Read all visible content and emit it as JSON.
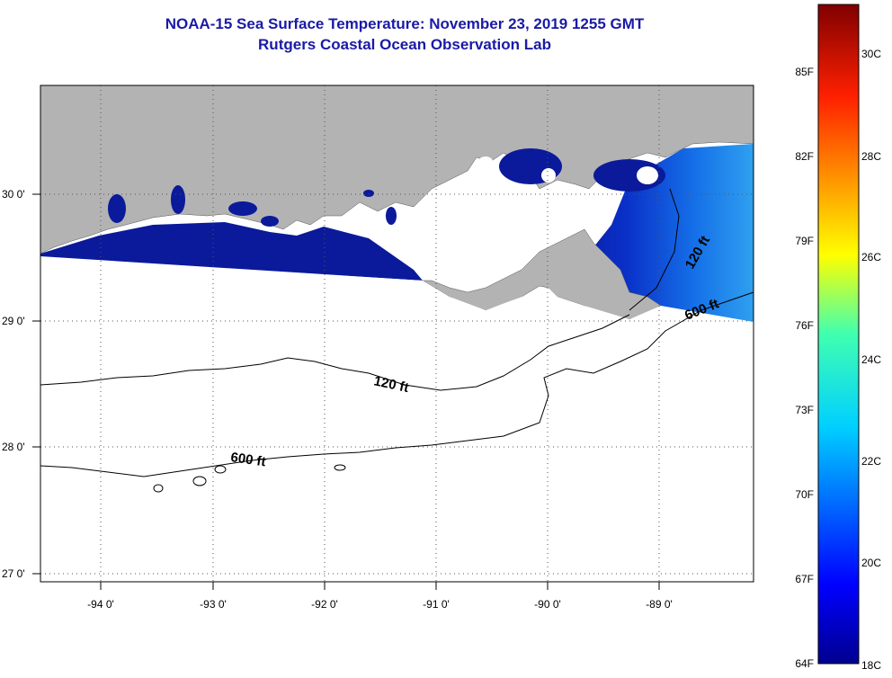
{
  "header": {
    "title": "NOAA-15 Sea Surface Temperature:  November 23, 2019 1255 GMT",
    "subtitle": "Rutgers Coastal Ocean Observation Lab"
  },
  "map": {
    "lon_range": [
      -94.5,
      -88.3
    ],
    "lat_range": [
      26.95,
      30.87
    ],
    "lon_ticks": [
      "-94 0'",
      "-93 0'",
      "-92 0'",
      "-91 0'",
      "-90 0'",
      "-89 0'"
    ],
    "lat_ticks": [
      "30 0'",
      "29 0'",
      "28 0'",
      "27 0'"
    ],
    "contour_labels": [
      "120 ft",
      "600 ft",
      "120 ft",
      "600 ft"
    ],
    "colors": {
      "land": "#b3b3b3",
      "water_cold": "#0a1a9a",
      "no_data": "#ffffff",
      "contour": "#000000"
    }
  },
  "colorbar": {
    "fahrenheit_labels": [
      "85F",
      "82F",
      "79F",
      "76F",
      "73F",
      "70F",
      "67F",
      "64F"
    ],
    "celsius_labels": [
      "30C",
      "28C",
      "26C",
      "24C",
      "22C",
      "20C",
      "18C"
    ],
    "range_c": [
      18,
      31.1
    ]
  }
}
